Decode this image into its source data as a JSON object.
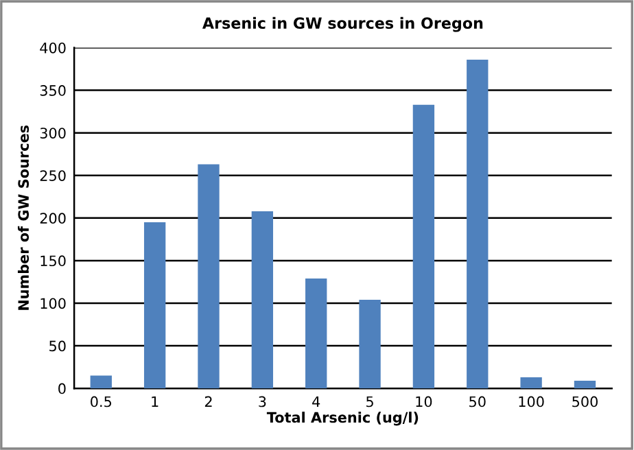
{
  "chart_data": {
    "type": "bar",
    "title": "Arsenic in GW sources in Oregon",
    "xlabel": "Total Arsenic (ug/l)",
    "ylabel": "Number of GW Sources",
    "categories": [
      "0.5",
      "1",
      "2",
      "3",
      "4",
      "5",
      "10",
      "50",
      "100",
      "500"
    ],
    "values": [
      15,
      195,
      263,
      208,
      129,
      104,
      333,
      386,
      13,
      9
    ],
    "color": "#4f81bd",
    "ylim": [
      0,
      400
    ],
    "yticks": [
      0,
      50,
      100,
      150,
      200,
      250,
      300,
      350,
      400
    ],
    "grid": "y"
  }
}
